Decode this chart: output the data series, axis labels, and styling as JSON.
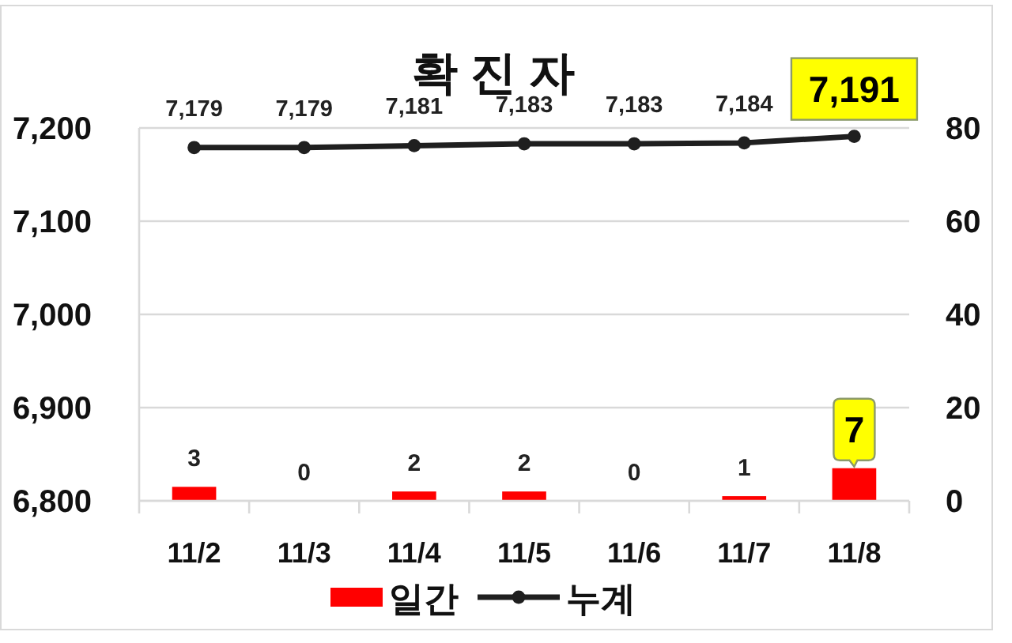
{
  "chart_data": {
    "type": "bar",
    "title": "확 진 자",
    "categories": [
      "11/2",
      "11/3",
      "11/4",
      "11/5",
      "11/6",
      "11/7",
      "11/8"
    ],
    "series": [
      {
        "name": "일간",
        "color": "#ff0000",
        "axis": "y2",
        "values": [
          3,
          0,
          2,
          2,
          0,
          1,
          7
        ],
        "value_labels": [
          "3",
          "0",
          "2",
          "2",
          "0",
          "1",
          "7"
        ]
      },
      {
        "name": "누계",
        "type": "line",
        "color": "#1f1f1f",
        "values": [
          7179,
          7179,
          7181,
          7183,
          7183,
          7184,
          7191
        ],
        "value_labels": [
          "7,179",
          "7,179",
          "7,181",
          "7,183",
          "7,183",
          "7,184",
          "7,191"
        ]
      }
    ],
    "ylim": [
      6800,
      7200
    ],
    "yticks": [
      {
        "value": 6800,
        "label": "6,800"
      },
      {
        "value": 6900,
        "label": "6,900"
      },
      {
        "value": 7000,
        "label": "7,000"
      },
      {
        "value": 7100,
        "label": "7,100"
      },
      {
        "value": 7200,
        "label": "7,200"
      }
    ],
    "y2lim": [
      0,
      80
    ],
    "y2ticks": [
      0,
      20,
      40,
      60,
      80
    ],
    "grid": "y",
    "legend": "bottom",
    "marker": "circle"
  }
}
